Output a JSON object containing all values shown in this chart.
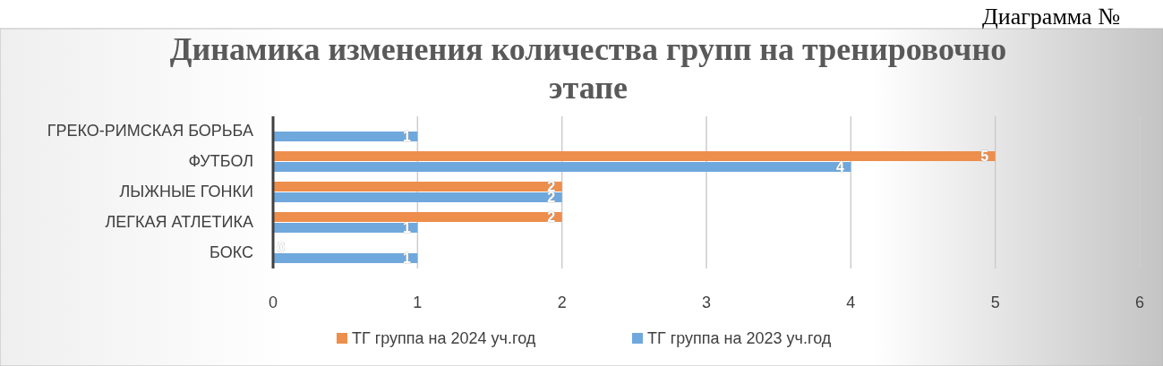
{
  "chart_data": {
    "type": "bar",
    "orientation": "horizontal",
    "title": "Динамика изменения количества групп на тренировочно этапе",
    "annotations": [
      "Диаграмма №"
    ],
    "categories": [
      "ГРЕКО-РИМСКАЯ БОРЬБА",
      "ФУТБОЛ",
      "ЛЫЖНЫЕ ГОНКИ",
      "ЛЕГКАЯ АТЛЕТИКА",
      "БОКС"
    ],
    "series": [
      {
        "name": "ТГ группа на 2024 уч.год",
        "color": "#ed8e4d",
        "values": [
          null,
          5,
          2,
          2,
          0
        ]
      },
      {
        "name": "ТГ группа на 2023 уч.год",
        "color": "#6fa8dc",
        "values": [
          1,
          4,
          2,
          1,
          1
        ]
      }
    ],
    "xlim": [
      0,
      6
    ],
    "xticks": [
      0,
      1,
      2,
      3,
      4,
      5,
      6
    ],
    "grid": "x",
    "data_labels": true,
    "legend": "bottom"
  }
}
